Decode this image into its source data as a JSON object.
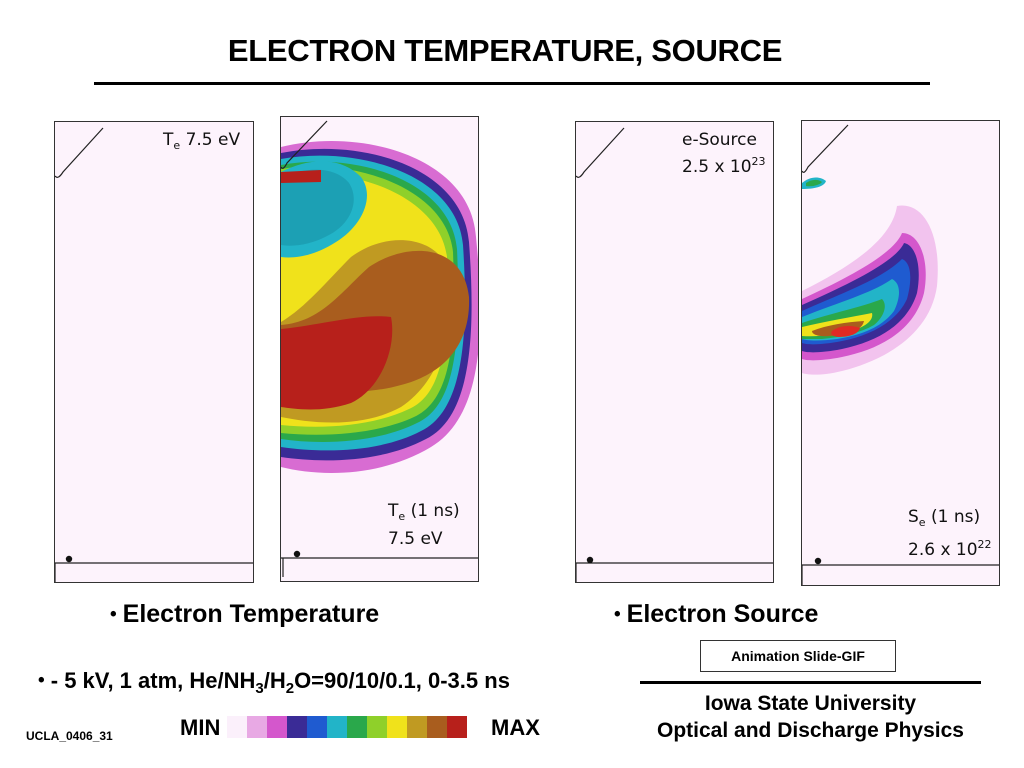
{
  "title": "ELECTRON TEMPERATURE, SOURCE",
  "panels": {
    "temp_scale": {
      "sym": "T",
      "sub": "e",
      "value": "7.5 eV"
    },
    "temp_frame": {
      "sym": "T",
      "sub": "e",
      "time": "(1 ns)",
      "value": "7.5 eV"
    },
    "source_scale": {
      "name": "e-Source",
      "base": "2.5 x 10",
      "exp": "23"
    },
    "source_frame": {
      "sym": "S",
      "sub": "e",
      "time": "(1 ns)",
      "base": "2.6 x 10",
      "exp": "22"
    }
  },
  "captions": {
    "bullet": "•",
    "temperature": "Electron Temperature",
    "source": "Electron Source"
  },
  "conditions": {
    "bullet": "•",
    "part1": " - 5 kV, 1 atm,  He/NH",
    "sub1": "3",
    "part2": "/H",
    "sub2": "2",
    "part3": "O=90/10/0.1, 0-3.5 ns"
  },
  "animation_label": "Animation Slide-GIF",
  "institution": {
    "line1": "Iowa State University",
    "line2": "Optical and Discharge Physics"
  },
  "scale": {
    "min_label": "MIN",
    "max_label": "MAX",
    "colors": [
      "#fbf0fb",
      "#e8a9e4",
      "#d457cc",
      "#3a2b96",
      "#1f5bd0",
      "#22b4c8",
      "#2aa84b",
      "#8fd02a",
      "#f0e21b",
      "#c09a22",
      "#a95d1e",
      "#b7201b"
    ]
  },
  "footer": "UCLA_0406_31"
}
